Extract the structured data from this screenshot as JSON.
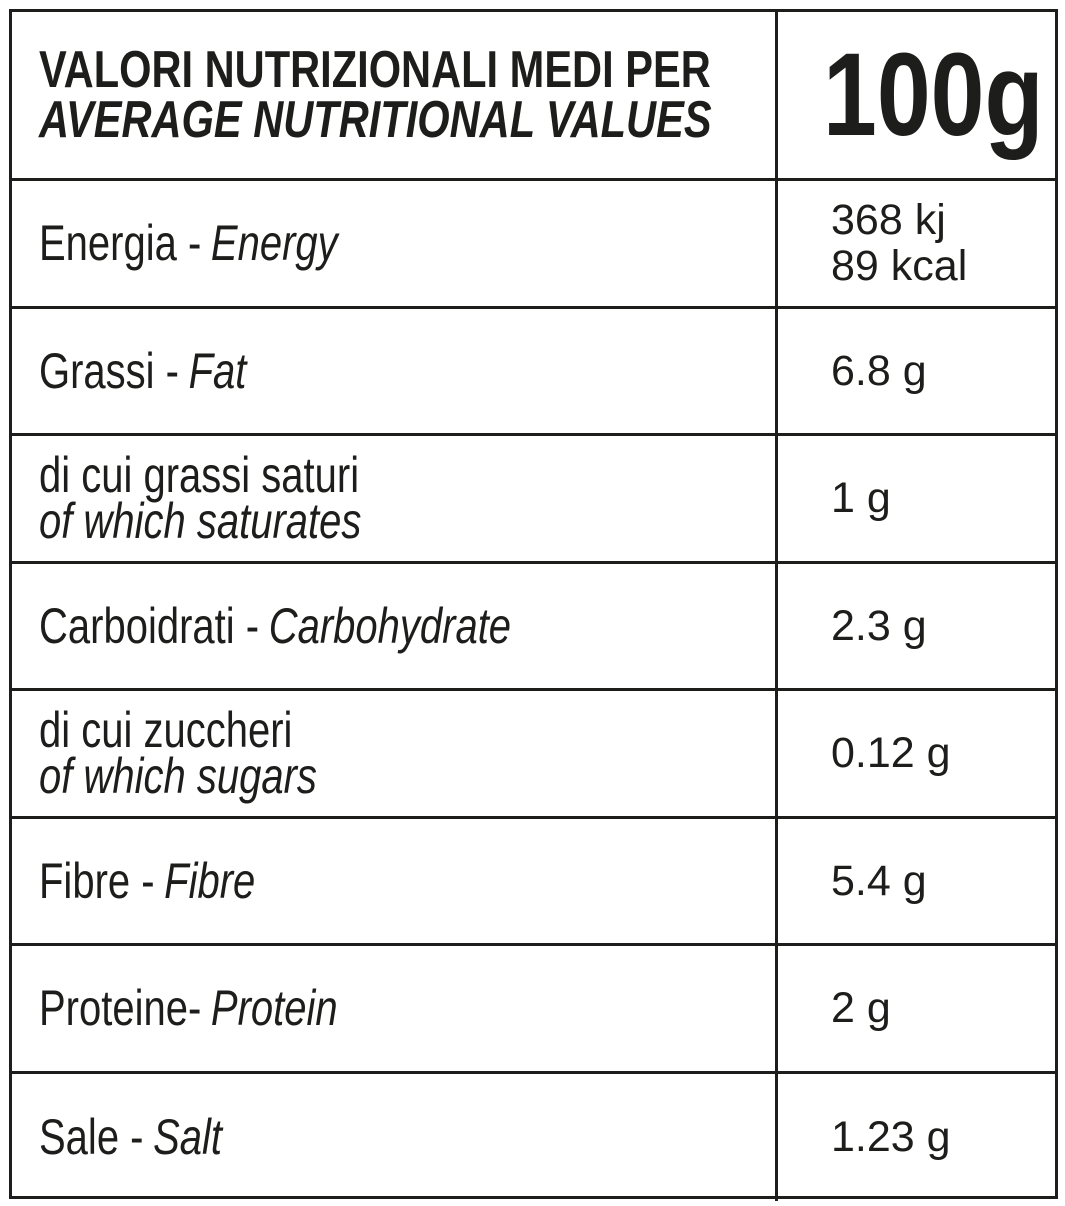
{
  "header": {
    "title": [
      "VALORI NUTRIZIONALI MEDI PER",
      "AVERAGE NUTRITIONAL VALUES"
    ],
    "value": "100g"
  },
  "rows": [
    {
      "it": "Energia -",
      "en": "Energy",
      "values": [
        "368 kj",
        "89 kcal"
      ]
    },
    {
      "it": "Grassi -",
      "en": "Fat",
      "values": [
        "6.8 g"
      ]
    },
    {
      "it": "di cui grassi saturi",
      "en": "of which saturates",
      "stacked": true,
      "values": [
        "1 g"
      ]
    },
    {
      "it": "Carboidrati -",
      "en": "Carbohydrate",
      "values": [
        "2.3 g"
      ]
    },
    {
      "it": "di cui zuccheri",
      "en": "of which sugars",
      "stacked": true,
      "values": [
        "0.12 g"
      ]
    },
    {
      "it": "Fibre -",
      "en": "Fibre",
      "values": [
        "5.4 g"
      ]
    },
    {
      "it": "Proteine-",
      "en": "Protein",
      "values": [
        "2 g"
      ]
    },
    {
      "it": "Sale -",
      "en": "Salt",
      "values": [
        "1.23 g"
      ]
    }
  ]
}
